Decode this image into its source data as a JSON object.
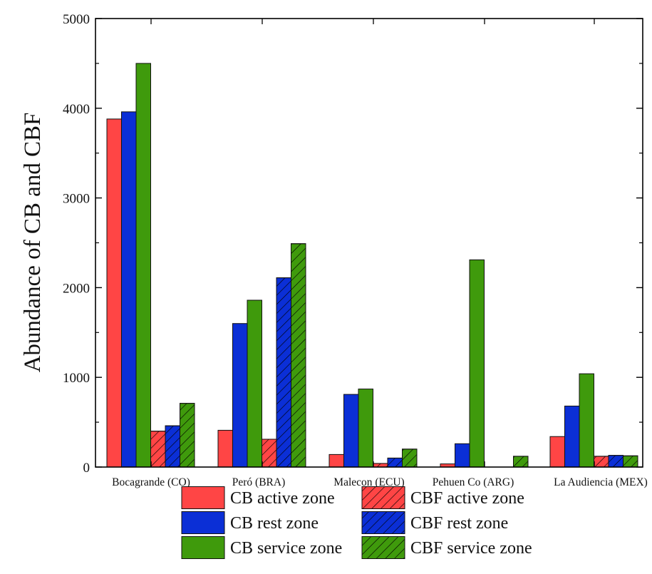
{
  "chart_data": {
    "type": "bar",
    "title": "",
    "xlabel": "",
    "ylabel": "Abundance of CB and CBF",
    "ylim": [
      0,
      5000
    ],
    "yticks": [
      0,
      1000,
      2000,
      3000,
      4000,
      5000
    ],
    "grid": false,
    "legend_position": "bottom",
    "categories": [
      "Bocagrande (CO)",
      "Peró (BRA)",
      "Malecon (ECU)",
      "Pehuen Co (ARG)",
      "La Audiencia (MEX)"
    ],
    "series": [
      {
        "name": "CB active zone",
        "color": "#ff4545",
        "hatched": false,
        "values": [
          3880,
          410,
          140,
          35,
          340
        ]
      },
      {
        "name": "CB rest zone",
        "color": "#0b2fd6",
        "hatched": false,
        "values": [
          3960,
          1600,
          810,
          260,
          680
        ]
      },
      {
        "name": "CB service zone",
        "color": "#3f9a0c",
        "hatched": false,
        "values": [
          4500,
          1860,
          870,
          2310,
          1040
        ]
      },
      {
        "name": "CBF active zone",
        "color": "#ff4545",
        "hatched": true,
        "values": [
          400,
          310,
          40,
          0,
          120
        ]
      },
      {
        "name": "CBF rest zone",
        "color": "#0b2fd6",
        "hatched": true,
        "values": [
          460,
          2110,
          100,
          0,
          130
        ]
      },
      {
        "name": "CBF service zone",
        "color": "#3f9a0c",
        "hatched": true,
        "values": [
          710,
          2490,
          200,
          120,
          125
        ]
      }
    ],
    "legend_order": [
      0,
      3,
      1,
      4,
      2,
      5
    ]
  }
}
